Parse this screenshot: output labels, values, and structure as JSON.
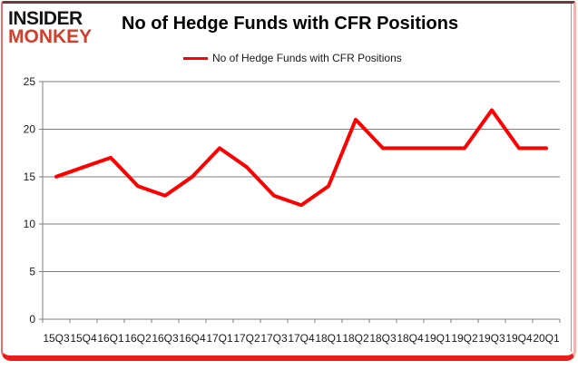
{
  "logo": {
    "line1": "INSIDER",
    "line2": "MONKEY"
  },
  "title": "No of Hedge Funds with CFR Positions",
  "legend": {
    "label": "No of Hedge Funds with CFR Positions"
  },
  "colors": {
    "line": "#ff0000",
    "logo_red": "#d2402d",
    "grid": "#7f7f7f",
    "axis": "#7f7f7f",
    "label": "#1a1a1a"
  },
  "chart_data": {
    "type": "line",
    "title": "No of Hedge Funds with CFR Positions",
    "categories": [
      "15Q3",
      "15Q4",
      "16Q1",
      "16Q2",
      "16Q3",
      "16Q4",
      "17Q1",
      "17Q2",
      "17Q3",
      "17Q4",
      "18Q1",
      "18Q2",
      "18Q3",
      "18Q4",
      "19Q1",
      "19Q2",
      "19Q3",
      "19Q4",
      "20Q1"
    ],
    "series": [
      {
        "name": "No of Hedge Funds with CFR Positions",
        "values": [
          15,
          16,
          17,
          14,
          13,
          15,
          18,
          16,
          13,
          12,
          14,
          21,
          18,
          18,
          18,
          18,
          22,
          18,
          18
        ]
      }
    ],
    "xlabel": "",
    "ylabel": "",
    "ylim": [
      0,
      25
    ],
    "yticks": [
      0,
      5,
      10,
      15,
      20,
      25
    ],
    "grid": true,
    "legend_position": "top"
  }
}
